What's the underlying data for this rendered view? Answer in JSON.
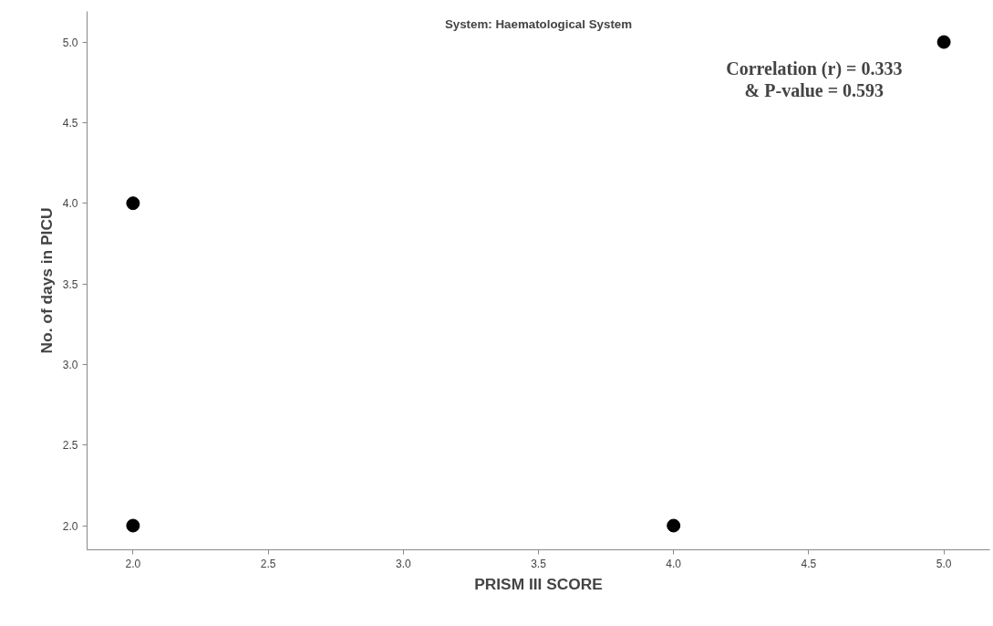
{
  "chart_data": {
    "type": "scatter",
    "title": "System: Haematological System",
    "xlabel": "PRISM III SCORE",
    "ylabel": "No. of days in PICU",
    "x": [
      2,
      2,
      4,
      5
    ],
    "series": [
      {
        "color": "#000000",
        "values": [
          4,
          2,
          2,
          5
        ]
      }
    ],
    "marker": "circle",
    "xlim": [
      1.83,
      5.17
    ],
    "ylim": [
      1.85,
      5.19
    ],
    "xticks": [
      {
        "value": 2,
        "label": "2.0"
      },
      {
        "value": 2.5,
        "label": "2.5"
      },
      {
        "value": 3,
        "label": "3.0"
      },
      {
        "value": 3.5,
        "label": "3.5"
      },
      {
        "value": 4,
        "label": "4.0"
      },
      {
        "value": 4.5,
        "label": "4.5"
      },
      {
        "value": 5,
        "label": "5.0"
      }
    ],
    "yticks": [
      {
        "value": 2,
        "label": "2.0"
      },
      {
        "value": 2.5,
        "label": "2.5"
      },
      {
        "value": 3,
        "label": "3.0"
      },
      {
        "value": 3.5,
        "label": "3.5"
      },
      {
        "value": 4,
        "label": "4.0"
      },
      {
        "value": 4.5,
        "label": "4.5"
      },
      {
        "value": 5,
        "label": "5.0"
      }
    ],
    "grid": false,
    "annotations": [
      "Correlation (r) = 0.333",
      "& P-value = 0.593"
    ]
  }
}
